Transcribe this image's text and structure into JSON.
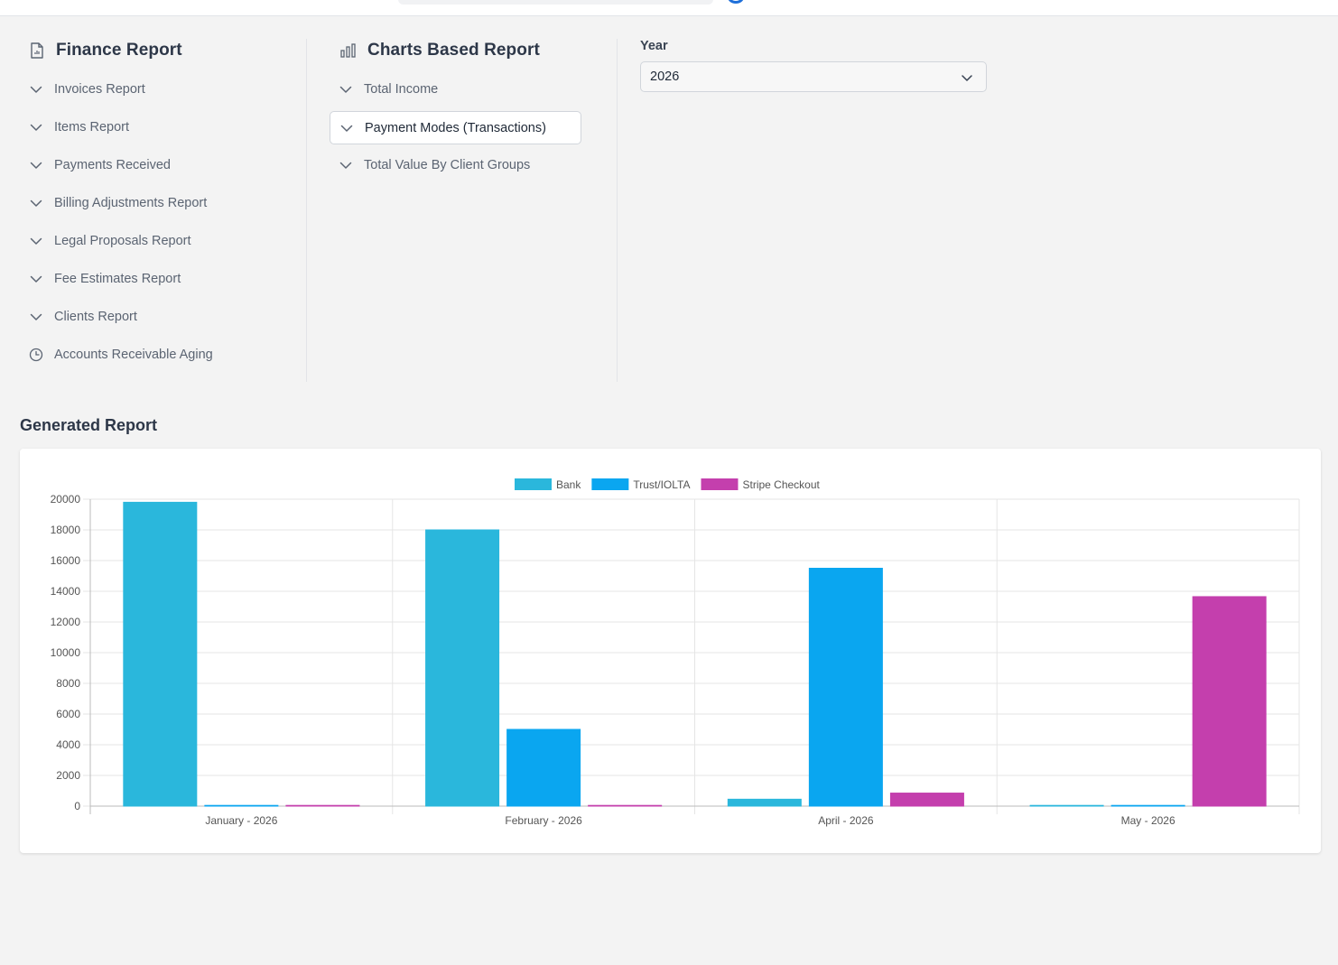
{
  "finance": {
    "title": "Finance Report",
    "items": [
      {
        "label": "Invoices Report",
        "icon": "chevron-down-icon"
      },
      {
        "label": "Items Report",
        "icon": "chevron-down-icon"
      },
      {
        "label": "Payments Received",
        "icon": "chevron-down-icon"
      },
      {
        "label": "Billing Adjustments Report",
        "icon": "chevron-down-icon"
      },
      {
        "label": "Legal Proposals Report",
        "icon": "chevron-down-icon"
      },
      {
        "label": "Fee Estimates Report",
        "icon": "chevron-down-icon"
      },
      {
        "label": "Clients Report",
        "icon": "chevron-down-icon"
      },
      {
        "label": "Accounts Receivable Aging",
        "icon": "clock-icon"
      }
    ]
  },
  "charts_report": {
    "title": "Charts Based Report",
    "items": [
      {
        "label": "Total Income",
        "active": false
      },
      {
        "label": "Payment Modes (Transactions)",
        "active": true
      },
      {
        "label": "Total Value By Client Groups",
        "active": false
      }
    ]
  },
  "year": {
    "label": "Year",
    "value": "2026"
  },
  "generated": {
    "title": "Generated Report"
  },
  "colors": {
    "bank": "#2ab7dc",
    "trust": "#0aa6f0",
    "stripe": "#c43fad"
  },
  "chart_data": {
    "type": "bar",
    "categories": [
      "January - 2026",
      "February - 2026",
      "April - 2026",
      "May - 2026"
    ],
    "series": [
      {
        "name": "Bank",
        "values": [
          19800,
          18000,
          450,
          0
        ]
      },
      {
        "name": "Trust/IOLTA",
        "values": [
          0,
          5000,
          15500,
          0
        ]
      },
      {
        "name": "Stripe Checkout",
        "values": [
          0,
          0,
          850,
          13650
        ]
      }
    ],
    "ylim": [
      0,
      20000
    ],
    "yticks": [
      "0",
      "2000",
      "4000",
      "6000",
      "8000",
      "10000",
      "12000",
      "14000",
      "16000",
      "18000",
      "20000"
    ],
    "legend_position": "top",
    "grid": true
  }
}
